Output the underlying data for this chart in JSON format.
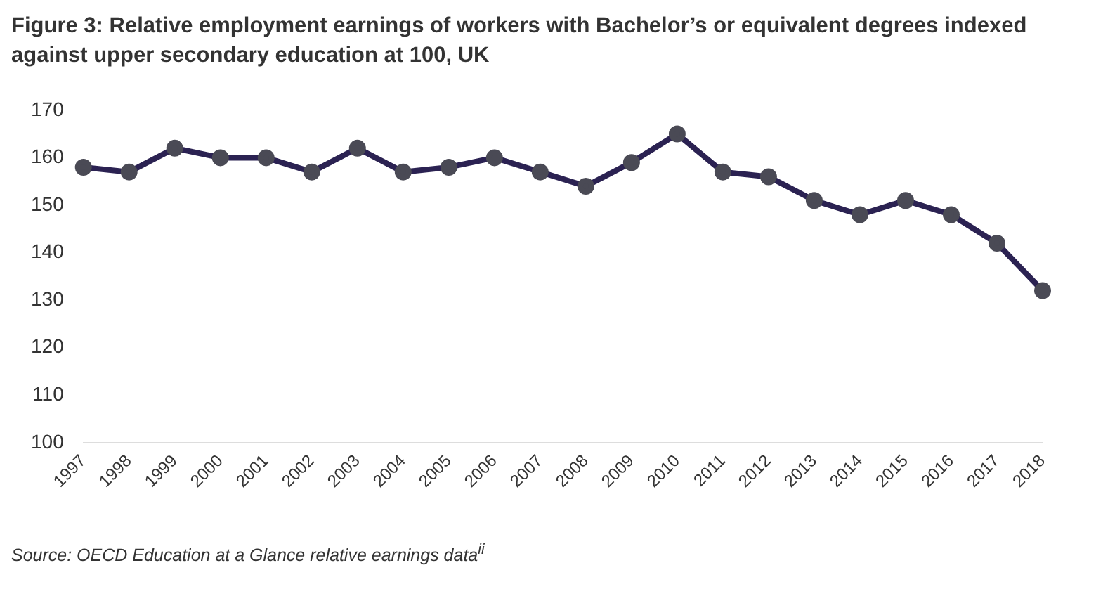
{
  "chart_data": {
    "type": "line",
    "title": "Figure 3: Relative employment earnings of workers with Bachelor’s or equivalent degrees indexed against upper secondary education at 100, UK",
    "categories": [
      "1997",
      "1998",
      "1999",
      "2000",
      "2001",
      "2002",
      "2003",
      "2004",
      "2005",
      "2006",
      "2007",
      "2008",
      "2009",
      "2010",
      "2011",
      "2012",
      "2013",
      "2014",
      "2015",
      "2016",
      "2017",
      "2018"
    ],
    "series": [
      {
        "color": "#2b2252",
        "values": [
          158,
          157,
          162,
          160,
          160,
          157,
          162,
          157,
          158,
          160,
          157,
          154,
          159,
          165,
          157,
          156,
          151,
          148,
          151,
          148,
          142,
          132
        ]
      }
    ],
    "ylim": [
      100,
      170
    ],
    "yticks": [
      100,
      110,
      120,
      130,
      140,
      150,
      160,
      170
    ],
    "grid": false,
    "legend": false,
    "marker": "circle",
    "line_style": "solid",
    "annotations": [
      "Source: OECD Education at a Glance relative earnings data$^{ii}$"
    ]
  }
}
